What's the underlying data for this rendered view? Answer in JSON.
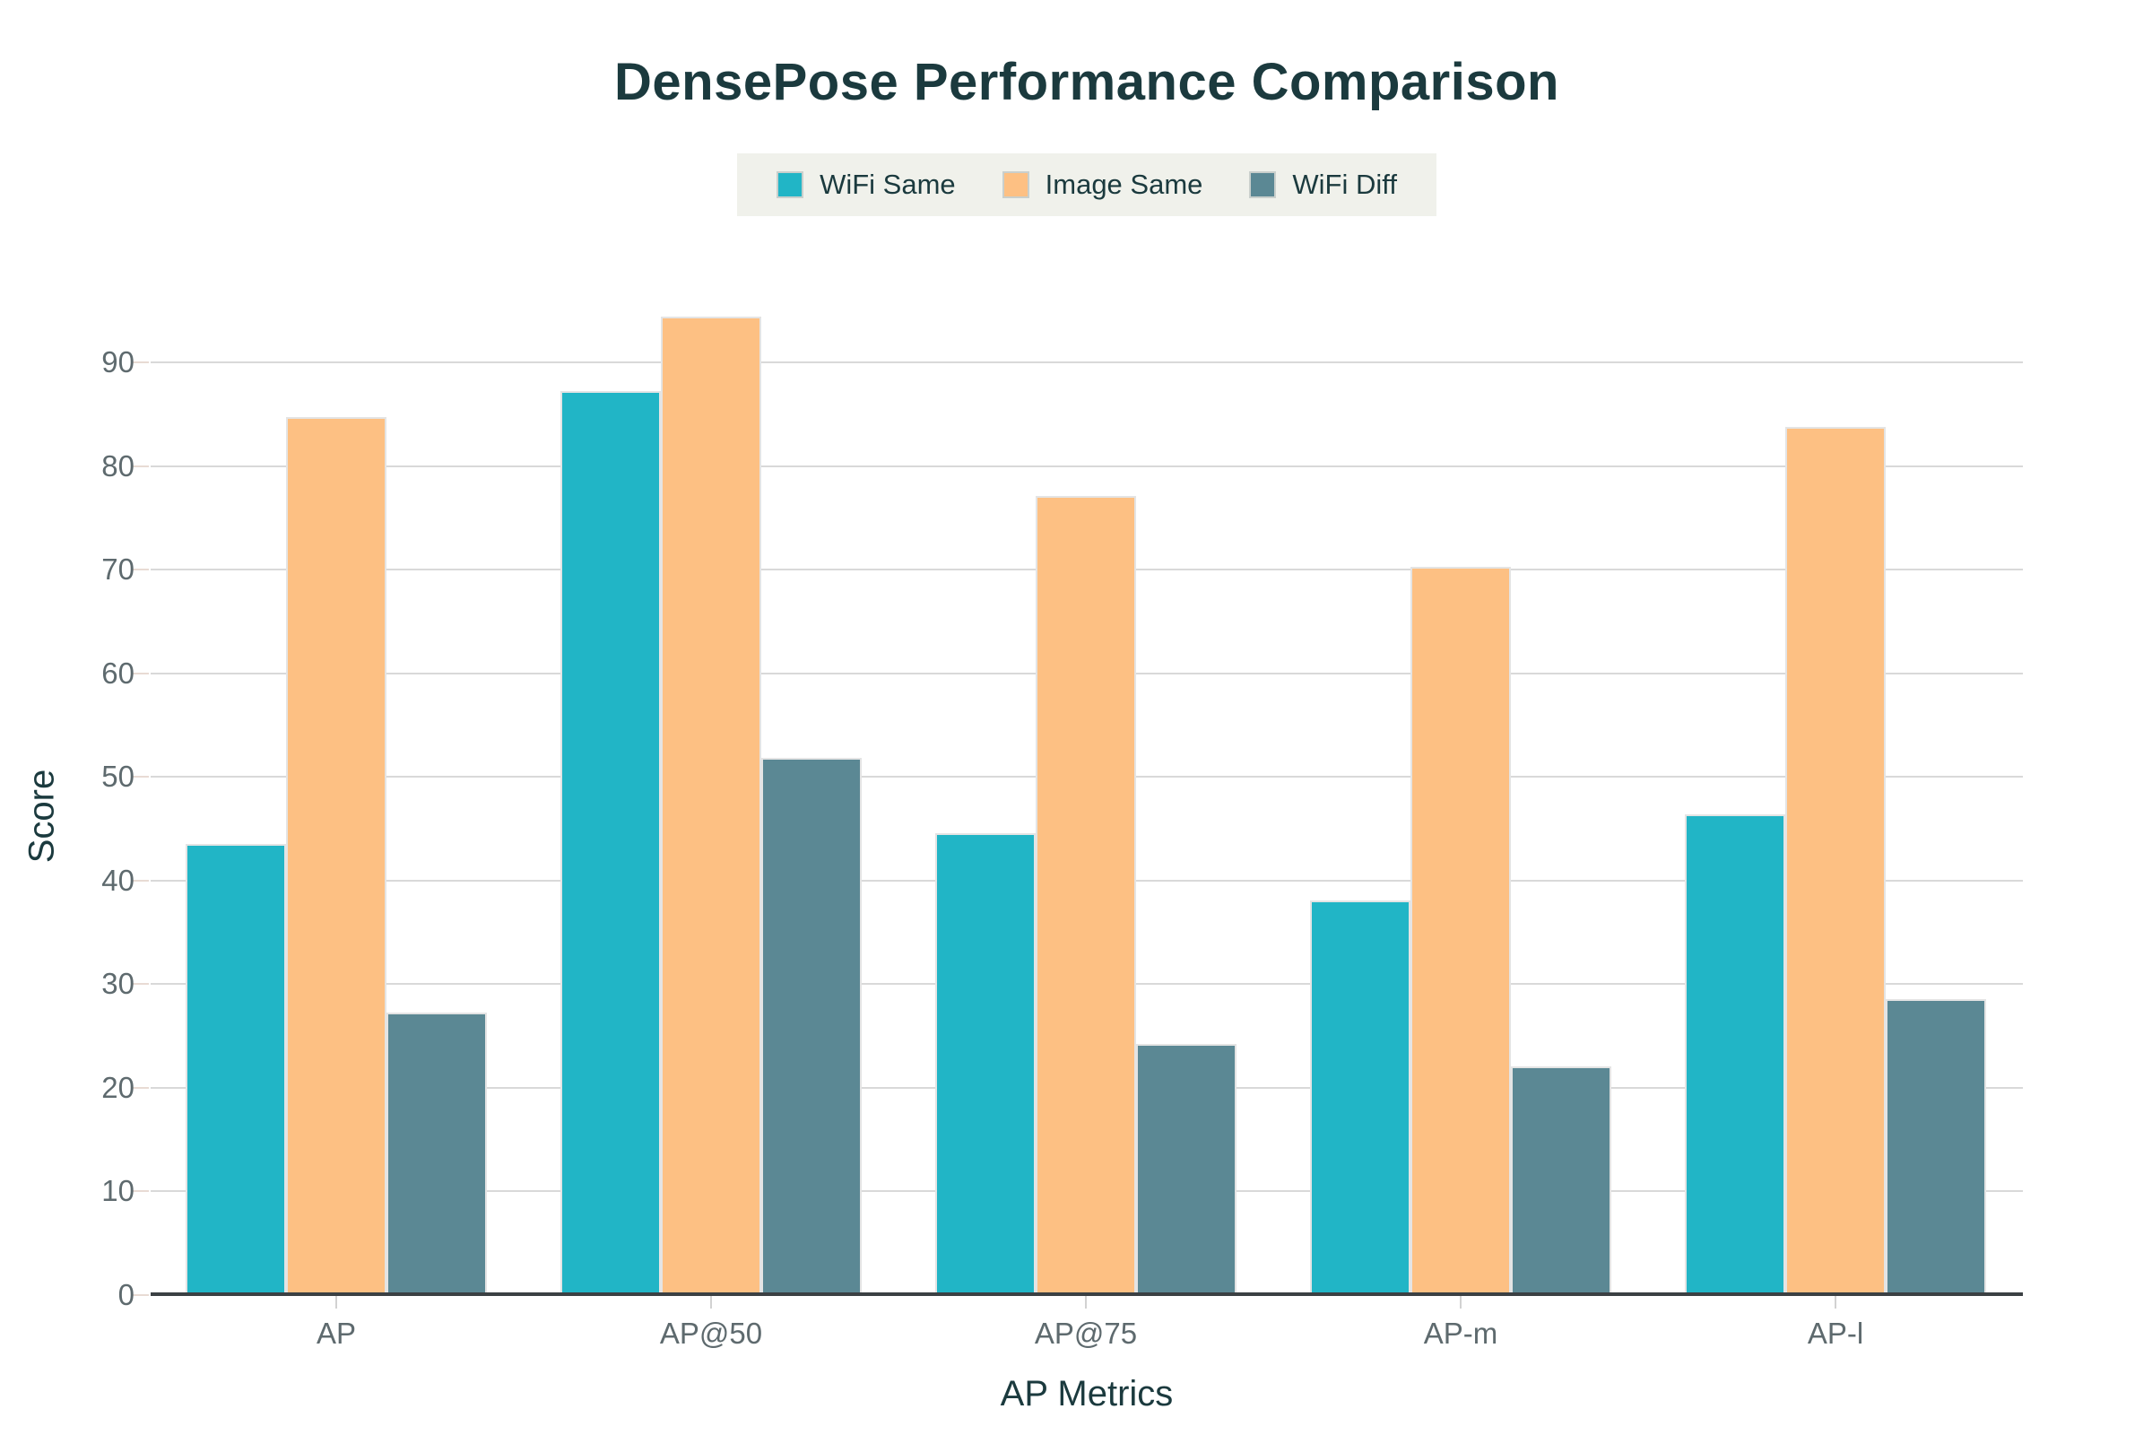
{
  "title": "DensePose Performance Comparison",
  "chart_data": {
    "type": "bar",
    "title": "DensePose Performance Comparison",
    "xlabel": "AP Metrics",
    "ylabel": "Score",
    "categories": [
      "AP",
      "AP@50",
      "AP@75",
      "AP-m",
      "AP-l"
    ],
    "series": [
      {
        "name": "WiFi Same",
        "color": "#21b5c6",
        "values": [
          43.5,
          87.2,
          44.6,
          38.1,
          46.4
        ]
      },
      {
        "name": "Image Same",
        "color": "#fdc083",
        "values": [
          84.7,
          94.4,
          77.1,
          70.3,
          83.8
        ]
      },
      {
        "name": "WiFi Diff",
        "color": "#5b8894",
        "values": [
          27.3,
          51.8,
          24.2,
          22.1,
          28.6
        ]
      }
    ],
    "yticks": [
      0,
      10,
      20,
      30,
      40,
      50,
      60,
      70,
      80,
      90
    ],
    "ylim": [
      0,
      95
    ],
    "grid": true,
    "legend_position": "top-center"
  },
  "colors": {
    "background": "#ffffff",
    "title_text": "#1b3a3e",
    "tick_text": "#5e6a6e",
    "gridline": "#d9d9d9",
    "legend_background": "#f0f1eb",
    "axis_line": "#3b4043"
  }
}
